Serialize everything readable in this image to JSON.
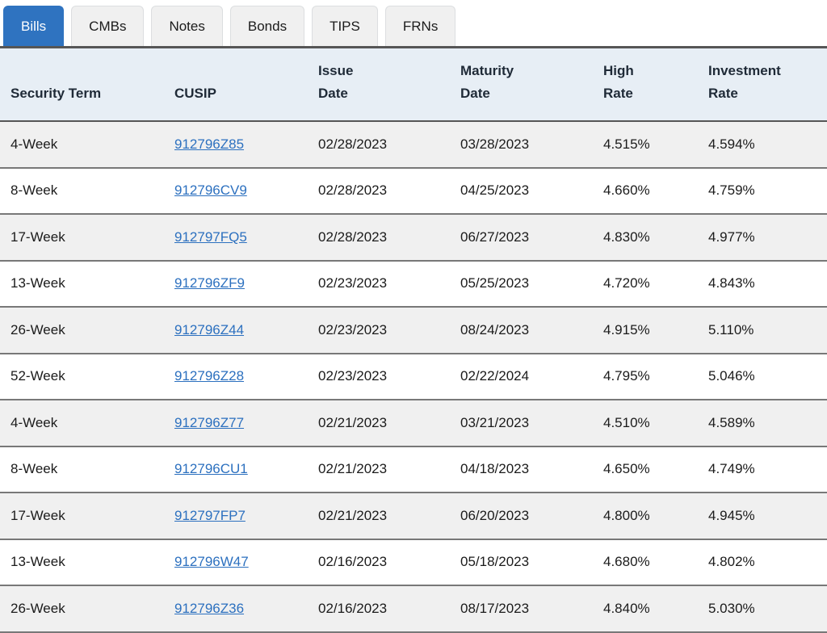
{
  "tabs": [
    {
      "label": "Bills",
      "active": true
    },
    {
      "label": "CMBs",
      "active": false
    },
    {
      "label": "Notes",
      "active": false
    },
    {
      "label": "Bonds",
      "active": false
    },
    {
      "label": "TIPS",
      "active": false
    },
    {
      "label": "FRNs",
      "active": false
    }
  ],
  "table": {
    "columns": [
      {
        "key": "term",
        "label": "Security Term",
        "label_lines": [
          "Security Term"
        ]
      },
      {
        "key": "cusip",
        "label": "CUSIP",
        "label_lines": [
          "CUSIP"
        ]
      },
      {
        "key": "issue_date",
        "label": "Issue Date",
        "label_lines": [
          "Issue",
          "Date"
        ]
      },
      {
        "key": "maturity_date",
        "label": "Maturity Date",
        "label_lines": [
          "Maturity",
          "Date"
        ]
      },
      {
        "key": "high_rate",
        "label": "High Rate",
        "label_lines": [
          "High",
          "Rate"
        ]
      },
      {
        "key": "investment_rate",
        "label": "Investment Rate",
        "label_lines": [
          "Investment",
          "Rate"
        ]
      }
    ],
    "rows": [
      {
        "term": "4-Week",
        "cusip": "912796Z85",
        "issue_date": "02/28/2023",
        "maturity_date": "03/28/2023",
        "high_rate": "4.515%",
        "investment_rate": "4.594%"
      },
      {
        "term": "8-Week",
        "cusip": "912796CV9",
        "issue_date": "02/28/2023",
        "maturity_date": "04/25/2023",
        "high_rate": "4.660%",
        "investment_rate": "4.759%"
      },
      {
        "term": "17-Week",
        "cusip": "912797FQ5",
        "issue_date": "02/28/2023",
        "maturity_date": "06/27/2023",
        "high_rate": "4.830%",
        "investment_rate": "4.977%"
      },
      {
        "term": "13-Week",
        "cusip": "912796ZF9",
        "issue_date": "02/23/2023",
        "maturity_date": "05/25/2023",
        "high_rate": "4.720%",
        "investment_rate": "4.843%"
      },
      {
        "term": "26-Week",
        "cusip": "912796Z44",
        "issue_date": "02/23/2023",
        "maturity_date": "08/24/2023",
        "high_rate": "4.915%",
        "investment_rate": "5.110%"
      },
      {
        "term": "52-Week",
        "cusip": "912796Z28",
        "issue_date": "02/23/2023",
        "maturity_date": "02/22/2024",
        "high_rate": "4.795%",
        "investment_rate": "5.046%"
      },
      {
        "term": "4-Week",
        "cusip": "912796Z77",
        "issue_date": "02/21/2023",
        "maturity_date": "03/21/2023",
        "high_rate": "4.510%",
        "investment_rate": "4.589%"
      },
      {
        "term": "8-Week",
        "cusip": "912796CU1",
        "issue_date": "02/21/2023",
        "maturity_date": "04/18/2023",
        "high_rate": "4.650%",
        "investment_rate": "4.749%"
      },
      {
        "term": "17-Week",
        "cusip": "912797FP7",
        "issue_date": "02/21/2023",
        "maturity_date": "06/20/2023",
        "high_rate": "4.800%",
        "investment_rate": "4.945%"
      },
      {
        "term": "13-Week",
        "cusip": "912796W47",
        "issue_date": "02/16/2023",
        "maturity_date": "05/18/2023",
        "high_rate": "4.680%",
        "investment_rate": "4.802%"
      },
      {
        "term": "26-Week",
        "cusip": "912796Z36",
        "issue_date": "02/16/2023",
        "maturity_date": "08/17/2023",
        "high_rate": "4.840%",
        "investment_rate": "5.030%"
      }
    ]
  },
  "colors": {
    "active_tab_blue": "#2f73c0",
    "inactive_tab_gray": "#f0f0f0",
    "tab_underline_gray": "#565656",
    "header_background_blue": "#e7eef5",
    "row_stripe_gray": "#f0f0f0",
    "row_border_gray": "#787878",
    "link_blue": "#2c70bf",
    "text_dark": "#1b1b1b"
  }
}
